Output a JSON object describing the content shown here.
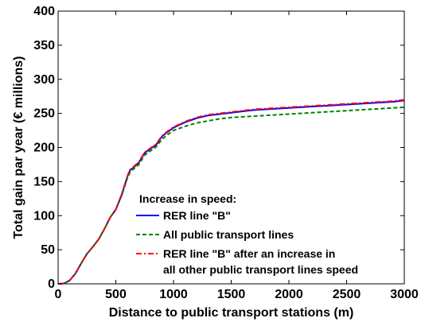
{
  "chart_data": {
    "type": "line",
    "title": "",
    "xlabel": "Distance to public transport stations (m)",
    "ylabel": "Total gain par year (€ millions)",
    "xlim": [
      0,
      3000
    ],
    "ylim": [
      0,
      400
    ],
    "xticks": [
      0,
      500,
      1000,
      1500,
      2000,
      2500,
      3000
    ],
    "yticks": [
      0,
      50,
      100,
      150,
      200,
      250,
      300,
      350,
      400
    ],
    "grid": false,
    "legend_position": "bottom-right",
    "legend_title": "Increase in speed:",
    "series": [
      {
        "name": "RER line \"B\"",
        "color": "#0000ff",
        "style": "solid",
        "x": [
          0,
          50,
          100,
          150,
          200,
          250,
          300,
          350,
          400,
          450,
          500,
          550,
          600,
          625,
          650,
          700,
          750,
          800,
          850,
          900,
          950,
          1000,
          1100,
          1200,
          1300,
          1400,
          1500,
          1600,
          1700,
          1800,
          1900,
          2000,
          2100,
          2200,
          2300,
          2400,
          2500,
          2600,
          2700,
          2800,
          2900,
          3000
        ],
        "y": [
          0,
          0.5,
          5,
          15,
          30,
          44,
          54,
          65,
          80,
          97,
          109,
          130,
          157,
          167,
          170,
          178,
          192,
          198,
          204,
          216,
          223,
          229,
          237,
          243,
          247,
          249,
          251,
          253,
          255,
          256,
          257,
          258,
          259,
          260,
          261,
          262,
          263,
          264,
          265,
          266,
          267,
          269
        ]
      },
      {
        "name": "All public transport lines",
        "color": "#008000",
        "style": "dashed",
        "x": [
          0,
          50,
          100,
          150,
          200,
          250,
          300,
          350,
          400,
          450,
          500,
          550,
          600,
          625,
          650,
          700,
          750,
          800,
          850,
          900,
          950,
          1000,
          1100,
          1200,
          1300,
          1400,
          1500,
          1600,
          1700,
          1800,
          1900,
          2000,
          2100,
          2200,
          2300,
          2400,
          2500,
          2600,
          2700,
          2800,
          2900,
          3000
        ],
        "y": [
          0,
          0.5,
          5,
          15,
          30,
          44,
          54,
          65,
          80,
          97,
          109,
          129,
          155,
          164,
          168,
          175,
          189,
          195,
          201,
          212,
          219,
          225,
          231,
          236,
          239,
          242,
          244,
          245,
          246,
          247,
          248,
          249,
          250,
          251,
          252,
          253,
          254,
          255,
          256,
          257,
          258,
          259
        ]
      },
      {
        "name": "RER line \"B\" after an increase in all other public transport lines speed",
        "legend_lines": [
          "RER line \"B\" after an increase in",
          "all other public transport lines speed"
        ],
        "color": "#ff0000",
        "style": "dashdot",
        "x": [
          0,
          50,
          100,
          150,
          200,
          250,
          300,
          350,
          400,
          450,
          500,
          550,
          600,
          625,
          650,
          700,
          750,
          800,
          850,
          900,
          950,
          1000,
          1100,
          1200,
          1300,
          1400,
          1500,
          1600,
          1700,
          1800,
          1900,
          2000,
          2100,
          2200,
          2300,
          2400,
          2500,
          2600,
          2700,
          2800,
          2900,
          3000
        ],
        "y": [
          0,
          0.5,
          5,
          15,
          30,
          44,
          54,
          65,
          80,
          97,
          109,
          131,
          158,
          168,
          171,
          179,
          193,
          199,
          205,
          217,
          224,
          230,
          238,
          244,
          248,
          250,
          252,
          254,
          256,
          257,
          258,
          259,
          260,
          261,
          262,
          263,
          264,
          265,
          266,
          267,
          268,
          270
        ]
      }
    ]
  }
}
